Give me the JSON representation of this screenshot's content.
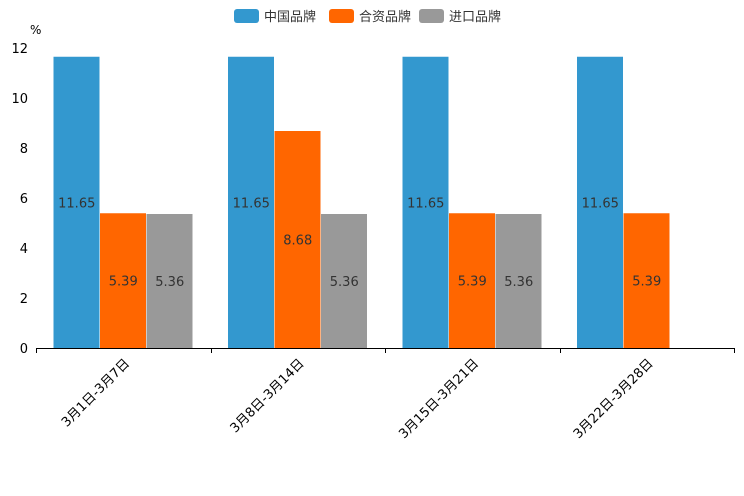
{
  "chart_data": {
    "type": "bar",
    "title": "",
    "xlabel": "",
    "ylabel": "%",
    "ylim": [
      0,
      12
    ],
    "yticks": [
      0,
      2,
      4,
      6,
      8,
      10,
      12
    ],
    "grid": false,
    "legend_position": "top-center",
    "categories": [
      "3月1日-3月7日",
      "3月8日-3月14日",
      "3月15日-3月21日",
      "3月22日-3月28日"
    ],
    "series": [
      {
        "name": "中国品牌",
        "color": "#3398cf",
        "values": [
          11.65,
          11.65,
          11.65,
          11.65
        ],
        "labels": [
          "11.65",
          "11.65",
          "11.65",
          "11.65"
        ]
      },
      {
        "name": "合资品牌",
        "color": "#ff6600",
        "values": [
          5.39,
          8.68,
          5.39,
          5.39
        ],
        "labels": [
          "5.39",
          "8.68",
          "5.39",
          "5.39"
        ]
      },
      {
        "name": "进口品牌",
        "color": "#999999",
        "values": [
          5.36,
          5.36,
          5.36,
          null
        ],
        "labels": [
          "5.36",
          "5.36",
          "5.36",
          ""
        ]
      }
    ]
  }
}
